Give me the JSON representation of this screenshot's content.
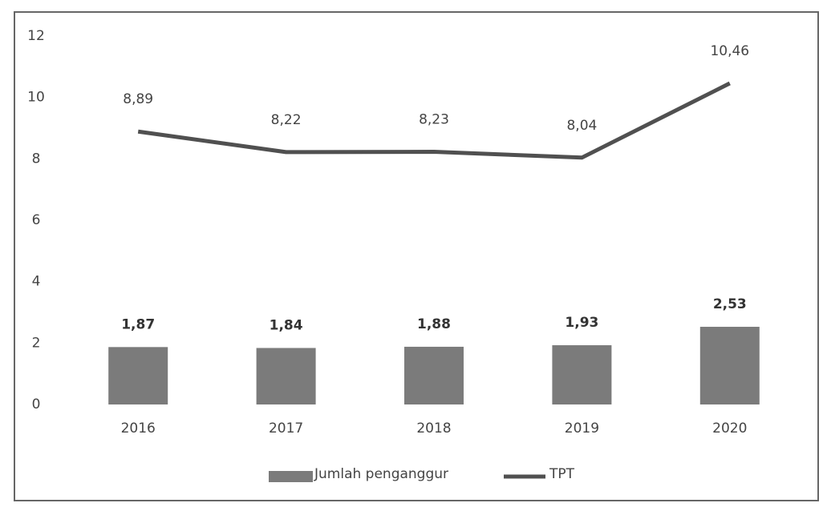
{
  "chart_data": {
    "type": "combo",
    "categories": [
      "2016",
      "2017",
      "2018",
      "2019",
      "2020"
    ],
    "series": [
      {
        "name": "Jumlah penganggur",
        "type": "bar",
        "color": "#7b7b7b",
        "values": [
          1.87,
          1.84,
          1.88,
          1.93,
          2.53
        ],
        "value_labels": [
          "1,87",
          "1,84",
          "1,88",
          "1,93",
          "2,53"
        ]
      },
      {
        "name": "TPT",
        "type": "line",
        "color": "#505050",
        "values": [
          8.89,
          8.22,
          8.23,
          8.04,
          10.46
        ],
        "value_labels": [
          "8,89",
          "8,22",
          "8,23",
          "8,04",
          "10,46"
        ]
      }
    ],
    "ylim": [
      0,
      12
    ],
    "yticks": [
      0,
      2,
      4,
      6,
      8,
      10,
      12
    ],
    "grid": false,
    "legend": "bottom"
  }
}
